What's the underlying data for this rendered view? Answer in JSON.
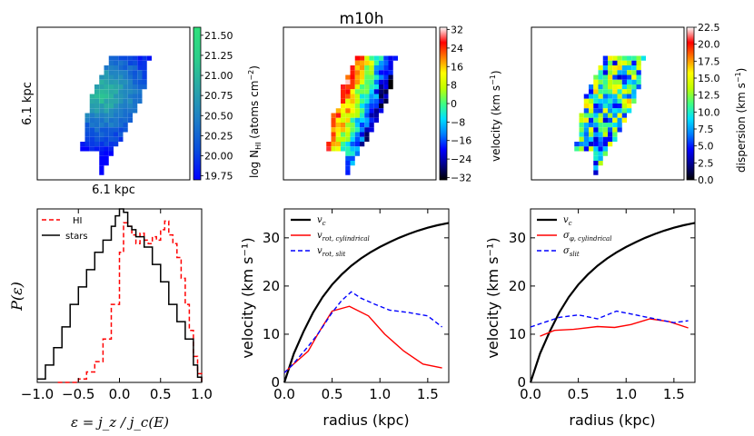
{
  "figure_title": "m10h",
  "maps": [
    {
      "id": "hi",
      "colorbar_label_main": "log N",
      "colorbar_label_sub": "HI",
      "colorbar_label_tail": " (atoms cm",
      "colorbar_label_exp": "−2",
      "colorbar_label_end": ")",
      "ticks": [
        "21.50",
        "21.25",
        "21.00",
        "20.75",
        "20.50",
        "20.25",
        "20.00",
        "19.75"
      ],
      "tick_values": [
        21.5,
        21.25,
        21.0,
        20.75,
        20.5,
        20.25,
        20.0,
        19.75
      ],
      "range": [
        19.7,
        21.6
      ],
      "colormap": [
        "#0000ff",
        "#0a4fdc",
        "#1f7fc6",
        "#2aa6a8",
        "#2ccf8a",
        "#30e07c"
      ],
      "x_label": "6.1 kpc",
      "y_label": "6.1 kpc"
    },
    {
      "id": "velocity",
      "colorbar_label": "velocity (km s",
      "colorbar_label_exp": "−1",
      "colorbar_label_end": ")",
      "ticks": [
        "32",
        "24",
        "16",
        "8",
        "0",
        "−8",
        "−16",
        "−24",
        "−32"
      ],
      "tick_values": [
        32,
        24,
        16,
        8,
        0,
        -8,
        -16,
        -24,
        -32
      ],
      "range": [
        -33,
        33
      ],
      "colormap": [
        "#000000",
        "#00008b",
        "#0000ff",
        "#0080ff",
        "#00e0ff",
        "#40ff80",
        "#c0ff00",
        "#ffff00",
        "#ff8000",
        "#ff0000",
        "#ffffff"
      ]
    },
    {
      "id": "dispersion",
      "colorbar_label": "dispersion (km s",
      "colorbar_label_exp": "−1",
      "colorbar_label_end": ")",
      "ticks": [
        "22.5",
        "20.0",
        "17.5",
        "15.0",
        "12.5",
        "10.0",
        "7.5",
        "5.0",
        "2.5",
        "0.0"
      ],
      "tick_values": [
        22.5,
        20.0,
        17.5,
        15.0,
        12.5,
        10.0,
        7.5,
        5.0,
        2.5,
        0.0
      ],
      "range": [
        0,
        22.5
      ],
      "colormap": [
        "#000000",
        "#00008b",
        "#0000ff",
        "#0080ff",
        "#00e0ff",
        "#40ff80",
        "#c0ff00",
        "#ffff00",
        "#ff8000",
        "#ff0000",
        "#ffffff"
      ]
    }
  ],
  "chart_data": [
    {
      "type": "line",
      "id": "epsilon",
      "xlabel": "ε = j_z / j_c(E)",
      "ylabel": "P(ε)",
      "xlim": [
        -1.0,
        1.0
      ],
      "xticks": [
        "−1.0",
        "−0.5",
        "0.0",
        "0.5",
        "1.0"
      ],
      "xtick_values": [
        -1.0,
        -0.5,
        0.0,
        0.5,
        1.0
      ],
      "ylim": [
        0,
        1.0
      ],
      "legend": [
        "HI",
        "stars"
      ],
      "series": [
        {
          "name": "HI",
          "color": "#ff0000",
          "dash": true,
          "x": [
            -0.75,
            -0.6,
            -0.5,
            -0.4,
            -0.3,
            -0.2,
            -0.1,
            0.0,
            0.05,
            0.1,
            0.15,
            0.2,
            0.25,
            0.3,
            0.35,
            0.4,
            0.45,
            0.5,
            0.55,
            0.6,
            0.65,
            0.7,
            0.75,
            0.8,
            0.85,
            0.9,
            0.95,
            1.0
          ],
          "y": [
            0.0,
            0.0,
            0.02,
            0.06,
            0.12,
            0.25,
            0.45,
            0.75,
            0.92,
            0.9,
            0.85,
            0.8,
            0.86,
            0.82,
            0.8,
            0.84,
            0.82,
            0.88,
            0.93,
            0.85,
            0.8,
            0.72,
            0.6,
            0.45,
            0.3,
            0.15,
            0.05,
            0.0
          ]
        },
        {
          "name": "stars",
          "color": "#000000",
          "dash": false,
          "x": [
            -1.0,
            -0.9,
            -0.8,
            -0.7,
            -0.6,
            -0.5,
            -0.4,
            -0.3,
            -0.2,
            -0.1,
            -0.05,
            0.0,
            0.05,
            0.1,
            0.15,
            0.2,
            0.3,
            0.4,
            0.5,
            0.6,
            0.7,
            0.8,
            0.9,
            0.95,
            1.0
          ],
          "y": [
            0.02,
            0.1,
            0.2,
            0.32,
            0.45,
            0.55,
            0.65,
            0.75,
            0.82,
            0.9,
            0.96,
            1.0,
            0.98,
            0.9,
            0.88,
            0.84,
            0.78,
            0.68,
            0.58,
            0.45,
            0.35,
            0.25,
            0.1,
            0.03,
            0.0
          ]
        }
      ]
    },
    {
      "type": "line",
      "id": "rotation",
      "xlabel": "radius (kpc)",
      "ylabel": "velocity (km s⁻¹)",
      "xlim": [
        0.0,
        1.72
      ],
      "ylim": [
        0,
        36
      ],
      "xticks": [
        "0.0",
        "0.5",
        "1.0",
        "1.5"
      ],
      "xtick_values": [
        0.0,
        0.5,
        1.0,
        1.5
      ],
      "yticks": [
        "0",
        "10",
        "20",
        "30"
      ],
      "ytick_values": [
        0,
        10,
        20,
        30
      ],
      "legend_labels": [
        {
          "main": "v",
          "sub": "c"
        },
        {
          "main": "v",
          "sub": "rot, cylindrical"
        },
        {
          "main": "v",
          "sub": "rot, slit"
        }
      ],
      "series": [
        {
          "name": "v_c",
          "color": "#000000",
          "dash": false,
          "width": 2.2,
          "x": [
            0.0,
            0.1,
            0.2,
            0.3,
            0.4,
            0.5,
            0.6,
            0.7,
            0.8,
            0.9,
            1.0,
            1.1,
            1.2,
            1.3,
            1.4,
            1.5,
            1.6,
            1.72
          ],
          "y": [
            0.0,
            6.0,
            10.5,
            14.5,
            17.7,
            20.3,
            22.4,
            24.2,
            25.7,
            27.0,
            28.1,
            29.1,
            30.0,
            30.8,
            31.5,
            32.1,
            32.6,
            33.1
          ]
        },
        {
          "name": "v_rot, cylindrical",
          "color": "#ff0000",
          "dash": false,
          "width": 1.4,
          "x": [
            0.0,
            0.08,
            0.25,
            0.35,
            0.5,
            0.68,
            0.88,
            1.05,
            1.25,
            1.45,
            1.65
          ],
          "y": [
            2.0,
            3.5,
            6.5,
            10.0,
            14.8,
            15.8,
            13.8,
            10.0,
            6.5,
            3.8,
            3.0
          ]
        },
        {
          "name": "v_rot, slit",
          "color": "#0000ff",
          "dash": true,
          "width": 1.4,
          "x": [
            0.0,
            0.08,
            0.25,
            0.35,
            0.5,
            0.6,
            0.7,
            0.8,
            0.95,
            1.1,
            1.3,
            1.5,
            1.65
          ],
          "y": [
            2.0,
            3.5,
            7.5,
            10.0,
            14.5,
            17.0,
            18.8,
            17.5,
            16.2,
            15.0,
            14.5,
            13.8,
            11.5
          ]
        }
      ]
    },
    {
      "type": "line",
      "id": "dispersion_profile",
      "xlabel": "radius (kpc)",
      "ylabel": "velocity (km s⁻¹)",
      "xlim": [
        0.0,
        1.72
      ],
      "ylim": [
        0,
        36
      ],
      "xticks": [
        "0.0",
        "0.5",
        "1.0",
        "1.5"
      ],
      "xtick_values": [
        0.0,
        0.5,
        1.0,
        1.5
      ],
      "yticks": [
        "0",
        "10",
        "20",
        "30"
      ],
      "ytick_values": [
        0,
        10,
        20,
        30
      ],
      "legend_labels": [
        {
          "main": "v",
          "sub": "c"
        },
        {
          "main": "σ",
          "sub": "φ, cylindrical"
        },
        {
          "main": "σ",
          "sub": "slit"
        }
      ],
      "series": [
        {
          "name": "v_c",
          "color": "#000000",
          "dash": false,
          "width": 2.2,
          "x": [
            0.0,
            0.1,
            0.2,
            0.3,
            0.4,
            0.5,
            0.6,
            0.7,
            0.8,
            0.9,
            1.0,
            1.1,
            1.2,
            1.3,
            1.4,
            1.5,
            1.6,
            1.72
          ],
          "y": [
            0.0,
            6.0,
            10.5,
            14.5,
            17.7,
            20.3,
            22.4,
            24.2,
            25.7,
            27.0,
            28.1,
            29.1,
            30.0,
            30.8,
            31.5,
            32.1,
            32.6,
            33.1
          ]
        },
        {
          "name": "sigma_phi, cylindrical",
          "color": "#ff0000",
          "dash": false,
          "width": 1.4,
          "x": [
            0.1,
            0.25,
            0.45,
            0.7,
            0.88,
            1.05,
            1.25,
            1.45,
            1.65
          ],
          "y": [
            9.6,
            10.8,
            11.0,
            11.6,
            11.4,
            12.0,
            13.2,
            12.6,
            11.3
          ]
        },
        {
          "name": "sigma_slit",
          "color": "#0000ff",
          "dash": true,
          "width": 1.4,
          "x": [
            0.0,
            0.15,
            0.3,
            0.5,
            0.7,
            0.9,
            1.1,
            1.3,
            1.5,
            1.65
          ],
          "y": [
            11.5,
            12.5,
            13.5,
            14.0,
            13.2,
            14.8,
            14.0,
            13.2,
            12.4,
            12.8
          ]
        }
      ]
    }
  ]
}
